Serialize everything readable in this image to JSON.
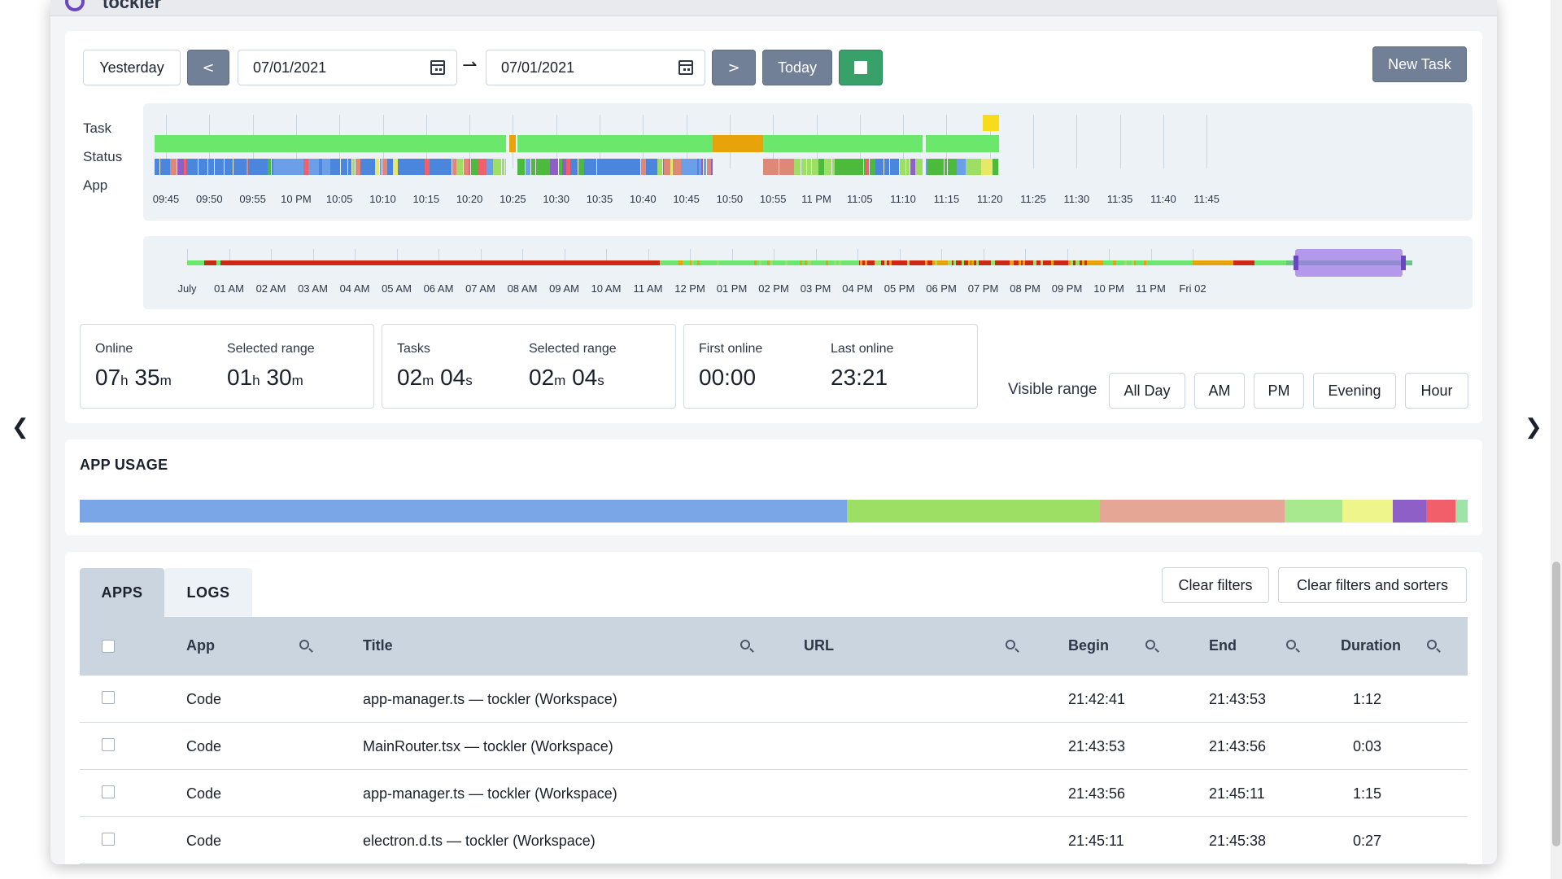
{
  "header": {
    "logo": "tockler"
  },
  "nav": {
    "prev": "❮",
    "next": "❯"
  },
  "toolbar": {
    "yesterday": "Yesterday",
    "prev": "<",
    "start_date": "07/01/2021",
    "range_arrow": "⇀",
    "end_date": "07/01/2021",
    "next": ">",
    "today": "Today",
    "new_task": "New Task"
  },
  "timeline": {
    "row_labels": [
      "Task",
      "Status",
      "App"
    ],
    "ticks": [
      "09:45",
      "09:50",
      "09:55",
      "10 PM",
      "10:05",
      "10:10",
      "10:15",
      "10:20",
      "10:25",
      "10:30",
      "10:35",
      "10:40",
      "10:45",
      "10:50",
      "10:55",
      "11 PM",
      "11:05",
      "11:10",
      "11:15",
      "11:20",
      "11:25",
      "11:30",
      "11:35",
      "11:40",
      "11:45"
    ]
  },
  "overview": {
    "ticks": [
      "July",
      "01 AM",
      "02 AM",
      "03 AM",
      "04 AM",
      "05 AM",
      "06 AM",
      "07 AM",
      "08 AM",
      "09 AM",
      "10 AM",
      "11 AM",
      "12 PM",
      "01 PM",
      "02 PM",
      "03 PM",
      "04 PM",
      "05 PM",
      "06 PM",
      "07 PM",
      "08 PM",
      "09 PM",
      "10 PM",
      "11 PM",
      "Fri 02"
    ]
  },
  "stats": {
    "online": {
      "label": "Online",
      "h": "07",
      "m": "35",
      "h_unit": "h",
      "m_unit": "m"
    },
    "online_range": {
      "label": "Selected range",
      "h": "01",
      "m": "30",
      "h_unit": "h",
      "m_unit": "m"
    },
    "tasks": {
      "label": "Tasks",
      "m": "02",
      "s": "04",
      "m_unit": "m",
      "s_unit": "s"
    },
    "tasks_range": {
      "label": "Selected range",
      "m": "02",
      "s": "04",
      "m_unit": "m",
      "s_unit": "s"
    },
    "first_online": {
      "label": "First online",
      "value": "00:00"
    },
    "last_online": {
      "label": "Last online",
      "value": "23:21"
    }
  },
  "visible_range": {
    "label": "Visible range",
    "options": [
      "All Day",
      "AM",
      "PM",
      "Evening",
      "Hour"
    ]
  },
  "app_usage": {
    "title": "APP USAGE",
    "segments": [
      {
        "share": 0.553,
        "color": "#7aa6e8"
      },
      {
        "share": 0.182,
        "color": "#9ddf65"
      },
      {
        "share": 0.133,
        "color": "#e6a695"
      },
      {
        "share": 0.042,
        "color": "#a8e88e"
      },
      {
        "share": 0.036,
        "color": "#eef58a"
      },
      {
        "share": 0.024,
        "color": "#8e5fc7"
      },
      {
        "share": 0.021,
        "color": "#f05f6a"
      },
      {
        "share": 0.009,
        "color": "#9fe3a8"
      }
    ]
  },
  "tabs": {
    "apps": "APPS",
    "logs": "LOGS"
  },
  "filters": {
    "clear": "Clear filters",
    "clear_all": "Clear filters and sorters"
  },
  "table": {
    "columns": {
      "app": "App",
      "title": "Title",
      "url": "URL",
      "begin": "Begin",
      "end": "End",
      "duration": "Duration"
    },
    "rows": [
      {
        "app": "Code",
        "title": "app-manager.ts — tockler (Workspace)",
        "url": "",
        "begin": "21:42:41",
        "end": "21:43:53",
        "duration": "1:12"
      },
      {
        "app": "Code",
        "title": "MainRouter.tsx — tockler (Workspace)",
        "url": "",
        "begin": "21:43:53",
        "end": "21:43:56",
        "duration": "0:03"
      },
      {
        "app": "Code",
        "title": "app-manager.ts — tockler (Workspace)",
        "url": "",
        "begin": "21:43:56",
        "end": "21:45:11",
        "duration": "1:15"
      },
      {
        "app": "Code",
        "title": "electron.d.ts — tockler (Workspace)",
        "url": "",
        "begin": "21:45:11",
        "end": "21:45:38",
        "duration": "0:27"
      }
    ]
  },
  "colors": {
    "online": "#6be86b",
    "idle": "#e8a20a",
    "offline": "#cc2a12",
    "app_primary": "#4a86dd",
    "task": "#f7dc1e",
    "selection": "#9f7ae8"
  }
}
